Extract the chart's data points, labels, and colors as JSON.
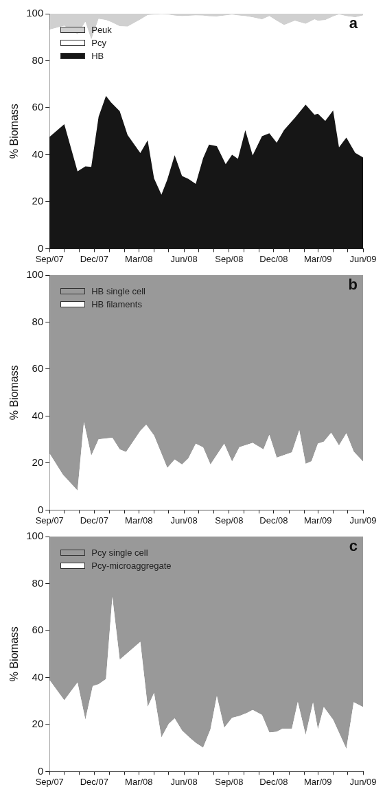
{
  "chart_data": [
    {
      "type": "area",
      "title": "a",
      "ylabel": "% Biomass",
      "stacked": true,
      "legend": "top left",
      "grid": false,
      "xlim": [
        "2007-09",
        "2009-06"
      ],
      "ylim": [
        0,
        100
      ],
      "yticks": [
        0,
        20,
        40,
        60,
        80,
        100
      ],
      "xticks": [
        {
          "value": "2007-09",
          "label": "Sep/07"
        },
        {
          "value": "2007-10",
          "label": null
        },
        {
          "value": "2007-11",
          "label": null
        },
        {
          "value": "2007-12",
          "label": "Dec/07"
        },
        {
          "value": "2008-01",
          "label": null
        },
        {
          "value": "2008-02",
          "label": null
        },
        {
          "value": "2008-03",
          "label": "Mar/08"
        },
        {
          "value": "2008-04",
          "label": null
        },
        {
          "value": "2008-05",
          "label": null
        },
        {
          "value": "2008-06",
          "label": "Jun/08"
        },
        {
          "value": "2008-07",
          "label": null
        },
        {
          "value": "2008-08",
          "label": null
        },
        {
          "value": "2008-09",
          "label": "Sep/08"
        },
        {
          "value": "2008-10",
          "label": null
        },
        {
          "value": "2008-11",
          "label": null
        },
        {
          "value": "2008-12",
          "label": "Dec/08"
        },
        {
          "value": "2009-01",
          "label": null
        },
        {
          "value": "2009-02",
          "label": null
        },
        {
          "value": "2009-03",
          "label": "Mar/09"
        },
        {
          "value": "2009-04",
          "label": null
        },
        {
          "value": "2009-05",
          "label": null
        },
        {
          "value": "2009-06",
          "label": "Jun/09"
        }
      ],
      "x": [
        "2007-09-01",
        "2007-10-01",
        "2007-10-28",
        "2007-11-13",
        "2007-11-25",
        "2007-12-10",
        "2007-12-25",
        "2008-01-04",
        "2008-01-22",
        "2008-02-07",
        "2008-03-04",
        "2008-03-19",
        "2008-04-01",
        "2008-04-16",
        "2008-04-28",
        "2008-05-13",
        "2008-05-28",
        "2008-06-10",
        "2008-06-25",
        "2008-07-10",
        "2008-07-22",
        "2008-08-07",
        "2008-08-25",
        "2008-09-07",
        "2008-09-19",
        "2008-10-04",
        "2008-10-19",
        "2008-11-07",
        "2008-11-22",
        "2008-12-07",
        "2008-12-22",
        "2009-01-13",
        "2009-02-04",
        "2009-02-22",
        "2009-03-01",
        "2009-03-16",
        "2009-04-01",
        "2009-04-13",
        "2009-04-28",
        "2009-05-16",
        "2009-06-01"
      ],
      "series": [
        {
          "name": "HB",
          "color": "#161616",
          "values": [
            47.6,
            53.0,
            32.9,
            35.0,
            34.8,
            56.2,
            65.0,
            62.3,
            58.5,
            48.4,
            40.7,
            46.1,
            29.9,
            23.0,
            29.4,
            39.8,
            30.9,
            29.7,
            27.6,
            38.5,
            44.3,
            43.6,
            36.0,
            40.0,
            38.2,
            50.4,
            39.7,
            47.9,
            49.1,
            45.1,
            50.5,
            55.7,
            61.3,
            57.0,
            57.4,
            54.4,
            58.8,
            43.1,
            47.3,
            40.8,
            38.8
          ]
        },
        {
          "name": "Pcy",
          "color": "#ffffff",
          "values": [
            45.6,
            41.9,
            58.3,
            61.6,
            54.1,
            41.6,
            32.3,
            34.2,
            36.2,
            46.1,
            56.8,
            53.3,
            69.7,
            76.8,
            70.3,
            59.4,
            68.1,
            69.4,
            71.7,
            60.7,
            54.6,
            55.2,
            63.3,
            59.6,
            61.1,
            48.6,
            58.8,
            49.7,
            49.9,
            51.9,
            44.7,
            41.3,
            34.4,
            40.6,
            39.6,
            42.9,
            40.0,
            56.6,
            51.7,
            57.7,
            60.5
          ]
        },
        {
          "name": "Peuk",
          "color": "#d0d0d0",
          "values": [
            6.8,
            5.1,
            8.8,
            3.4,
            11.1,
            2.2,
            2.7,
            3.5,
            5.3,
            5.5,
            2.5,
            0.6,
            0.4,
            0.2,
            0.3,
            0.8,
            1.0,
            0.9,
            0.7,
            0.8,
            1.1,
            1.2,
            0.7,
            0.4,
            0.7,
            1.0,
            1.5,
            2.4,
            1.0,
            3.0,
            4.8,
            3.0,
            4.3,
            2.4,
            3.0,
            2.7,
            1.2,
            0.3,
            1.0,
            1.5,
            0.7
          ]
        }
      ]
    },
    {
      "type": "area",
      "title": "b",
      "ylabel": "% Biomass",
      "stacked": true,
      "legend": "top left",
      "grid": false,
      "xlim": [
        "2007-09",
        "2009-06"
      ],
      "ylim": [
        0,
        100
      ],
      "yticks": [
        0,
        20,
        40,
        60,
        80,
        100
      ],
      "xticks": [
        {
          "value": "2007-09",
          "label": "Sep/07"
        },
        {
          "value": "2007-10",
          "label": null
        },
        {
          "value": "2007-11",
          "label": null
        },
        {
          "value": "2007-12",
          "label": "Dec/07"
        },
        {
          "value": "2008-01",
          "label": null
        },
        {
          "value": "2008-02",
          "label": null
        },
        {
          "value": "2008-03",
          "label": "Mar/08"
        },
        {
          "value": "2008-04",
          "label": null
        },
        {
          "value": "2008-05",
          "label": null
        },
        {
          "value": "2008-06",
          "label": "Jun/08"
        },
        {
          "value": "2008-07",
          "label": null
        },
        {
          "value": "2008-08",
          "label": null
        },
        {
          "value": "2008-09",
          "label": "Sep/08"
        },
        {
          "value": "2008-10",
          "label": null
        },
        {
          "value": "2008-11",
          "label": null
        },
        {
          "value": "2008-12",
          "label": "Dec/08"
        },
        {
          "value": "2009-01",
          "label": null
        },
        {
          "value": "2009-02",
          "label": null
        },
        {
          "value": "2009-03",
          "label": "Mar/09"
        },
        {
          "value": "2009-04",
          "label": null
        },
        {
          "value": "2009-05",
          "label": null
        },
        {
          "value": "2009-06",
          "label": "Jun/09"
        }
      ],
      "x": [
        "2007-09-01",
        "2007-09-28",
        "2007-10-28",
        "2007-11-10",
        "2007-11-25",
        "2007-12-10",
        "2008-01-07",
        "2008-01-22",
        "2008-02-04",
        "2008-03-04",
        "2008-03-16",
        "2008-04-01",
        "2008-04-28",
        "2008-05-13",
        "2008-05-28",
        "2008-06-10",
        "2008-06-25",
        "2008-07-10",
        "2008-07-25",
        "2008-08-10",
        "2008-08-22",
        "2008-09-07",
        "2008-09-22",
        "2008-10-19",
        "2008-11-10",
        "2008-11-22",
        "2008-12-07",
        "2009-01-07",
        "2009-01-22",
        "2009-02-04",
        "2009-02-16",
        "2009-03-01",
        "2009-03-13",
        "2009-03-28",
        "2009-04-13",
        "2009-04-28",
        "2009-05-13",
        "2009-06-01"
      ],
      "series": [
        {
          "name": "HB filaments",
          "color": "#ffffff",
          "values": [
            24.1,
            15.1,
            8.3,
            37.4,
            23.1,
            30.1,
            30.8,
            25.8,
            24.7,
            33.7,
            36.3,
            31.7,
            17.9,
            21.5,
            19.4,
            22.0,
            28.2,
            26.7,
            19.4,
            24.4,
            28.2,
            20.6,
            26.8,
            28.6,
            25.8,
            32.0,
            22.3,
            24.6,
            34.0,
            19.7,
            20.8,
            28.3,
            29.1,
            32.9,
            27.5,
            32.7,
            24.9,
            20.6
          ]
        },
        {
          "name": "HB single cell",
          "color": "#999999",
          "values": [
            75.9,
            84.9,
            91.7,
            62.6,
            76.9,
            69.9,
            69.2,
            74.2,
            75.3,
            66.3,
            63.7,
            68.3,
            82.1,
            78.5,
            80.6,
            78.0,
            71.8,
            73.3,
            80.6,
            75.6,
            71.8,
            79.4,
            73.2,
            71.4,
            74.2,
            68.0,
            77.7,
            75.4,
            66.0,
            80.3,
            79.2,
            71.7,
            70.9,
            67.1,
            72.5,
            67.3,
            75.1,
            79.4
          ]
        }
      ]
    },
    {
      "type": "area",
      "title": "c",
      "ylabel": "% Biomass",
      "stacked": true,
      "legend": "top left",
      "grid": false,
      "xlim": [
        "2007-09",
        "2009-06"
      ],
      "ylim": [
        0,
        100
      ],
      "yticks": [
        0,
        20,
        40,
        60,
        80,
        100
      ],
      "xticks": [
        {
          "value": "2007-09",
          "label": "Sep/07"
        },
        {
          "value": "2007-10",
          "label": null
        },
        {
          "value": "2007-11",
          "label": null
        },
        {
          "value": "2007-12",
          "label": "Dec/07"
        },
        {
          "value": "2008-01",
          "label": null
        },
        {
          "value": "2008-02",
          "label": null
        },
        {
          "value": "2008-03",
          "label": "Mar/08"
        },
        {
          "value": "2008-04",
          "label": null
        },
        {
          "value": "2008-05",
          "label": null
        },
        {
          "value": "2008-06",
          "label": "Jun/08"
        },
        {
          "value": "2008-07",
          "label": null
        },
        {
          "value": "2008-08",
          "label": null
        },
        {
          "value": "2008-09",
          "label": "Sep/08"
        },
        {
          "value": "2008-10",
          "label": null
        },
        {
          "value": "2008-11",
          "label": null
        },
        {
          "value": "2008-12",
          "label": "Dec/08"
        },
        {
          "value": "2009-01",
          "label": null
        },
        {
          "value": "2009-02",
          "label": null
        },
        {
          "value": "2009-03",
          "label": "Mar/09"
        },
        {
          "value": "2009-04",
          "label": null
        },
        {
          "value": "2009-05",
          "label": null
        },
        {
          "value": "2009-06",
          "label": "Jun/09"
        }
      ],
      "x": [
        "2007-09-01",
        "2007-10-01",
        "2007-10-28",
        "2007-11-13",
        "2007-11-28",
        "2007-12-10",
        "2007-12-25",
        "2008-01-07",
        "2008-01-22",
        "2008-03-04",
        "2008-03-19",
        "2008-04-01",
        "2008-04-16",
        "2008-05-01",
        "2008-05-13",
        "2008-05-28",
        "2008-06-13",
        "2008-06-25",
        "2008-07-10",
        "2008-07-25",
        "2008-08-07",
        "2008-08-22",
        "2008-09-07",
        "2008-09-22",
        "2008-10-07",
        "2008-10-19",
        "2008-11-07",
        "2008-11-22",
        "2008-12-07",
        "2008-12-19",
        "2009-01-07",
        "2009-01-19",
        "2009-02-04",
        "2009-02-19",
        "2009-03-01",
        "2009-03-13",
        "2009-04-01",
        "2009-04-28",
        "2009-05-13",
        "2009-06-01"
      ],
      "series": [
        {
          "name": "Pcy-microaggregate",
          "color": "#ffffff",
          "values": [
            38.9,
            30.3,
            37.9,
            22.0,
            36.3,
            37.1,
            39.3,
            74.3,
            47.6,
            55.2,
            27.5,
            33.4,
            14.5,
            20.3,
            22.6,
            17.4,
            14.3,
            12.2,
            10.1,
            17.9,
            32.1,
            18.6,
            22.8,
            23.6,
            24.9,
            26.2,
            24.1,
            16.6,
            16.9,
            18.2,
            18.2,
            29.6,
            15.5,
            29.3,
            17.9,
            27.4,
            22.0,
            9.6,
            29.5,
            27.4
          ]
        },
        {
          "name": "Pcy single cell",
          "color": "#999999",
          "values": [
            61.1,
            69.7,
            62.1,
            78.0,
            63.7,
            62.9,
            60.7,
            25.7,
            52.4,
            44.8,
            72.5,
            66.6,
            85.5,
            79.7,
            77.4,
            82.6,
            85.7,
            87.8,
            89.9,
            82.1,
            67.9,
            81.4,
            77.2,
            76.4,
            75.1,
            73.8,
            75.9,
            83.4,
            83.1,
            81.8,
            81.8,
            70.4,
            84.5,
            70.7,
            82.1,
            72.6,
            78.0,
            90.4,
            70.5,
            72.6
          ]
        }
      ]
    }
  ]
}
